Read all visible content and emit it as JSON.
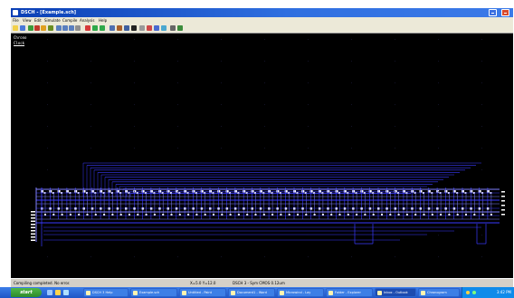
{
  "window": {
    "title": "DSCH - [Example.sch]",
    "menu": [
      "File",
      "View",
      "Edit",
      "Simulate",
      "Compile",
      "Analysis",
      "Help"
    ]
  },
  "canvas": {
    "labels": [
      "Chrono",
      "Clock"
    ]
  },
  "statusbar": {
    "left": "Compiling completed. No error.",
    "middle": "X=5.0 Y=12.0",
    "right": "DSCH 3 - Sym CMOS 0.12um"
  },
  "taskbar": {
    "start_label": "start",
    "tasks": [
      {
        "label": "DSCH 3 Help"
      },
      {
        "label": "Example.sch"
      },
      {
        "label": "Untitled - Paint"
      },
      {
        "label": "Document1 - Word"
      },
      {
        "label": "Microwind - Lay"
      },
      {
        "label": "Folder - Explorer"
      },
      {
        "label": "Inbox - Outlook"
      },
      {
        "label": "Chronogram"
      }
    ],
    "clock": "3:42 PM"
  },
  "colors": {
    "canvas_bg": "#000000",
    "wire": "#3a3aff",
    "wire_light": "#7f7fff",
    "node": "#ffffff",
    "titlebar": "#0a3fb5"
  }
}
